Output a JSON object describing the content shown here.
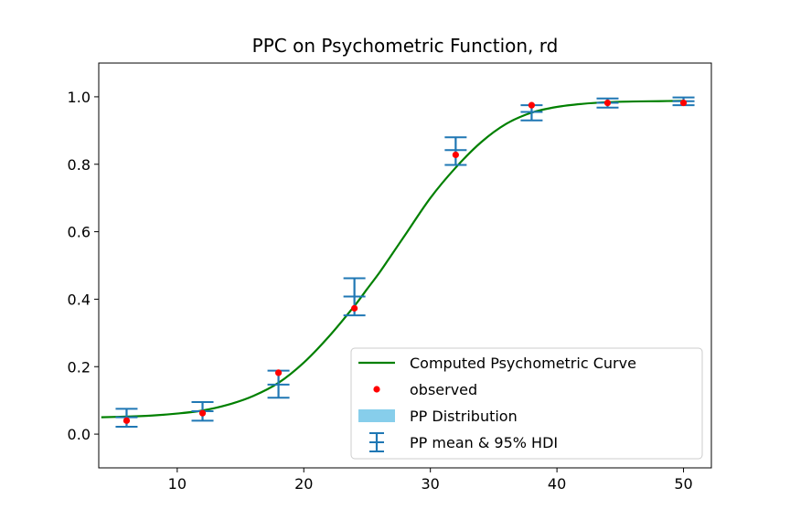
{
  "chart_data": {
    "type": "line",
    "title": "PPC on Psychometric Function, rd",
    "xlabel": "",
    "ylabel": "",
    "xlim": [
      3.8,
      52.2
    ],
    "ylim": [
      -0.1,
      1.1
    ],
    "xticks": [
      10,
      20,
      30,
      40,
      50
    ],
    "yticks": [
      0.0,
      0.2,
      0.4,
      0.6,
      0.8,
      1.0
    ],
    "xtick_labels": [
      "10",
      "20",
      "30",
      "40",
      "50"
    ],
    "ytick_labels": [
      "0.0",
      "0.2",
      "0.4",
      "0.6",
      "0.8",
      "1.0"
    ],
    "grid": false,
    "legend_position": "lower-right",
    "legend": [
      "Computed Psychometric Curve",
      "observed",
      "PP Distribution",
      "PP mean & 95% HDI"
    ],
    "curve": {
      "name": "Computed Psychometric Curve",
      "color": "#008000",
      "x": [
        4,
        6,
        8,
        10,
        12,
        14,
        16,
        18,
        20,
        22,
        24,
        25,
        26,
        27,
        28,
        30,
        32,
        34,
        36,
        38,
        40,
        42,
        44,
        46,
        48,
        50
      ],
      "y": [
        0.05,
        0.052,
        0.055,
        0.061,
        0.07,
        0.087,
        0.113,
        0.152,
        0.212,
        0.29,
        0.38,
        0.43,
        0.48,
        0.535,
        0.59,
        0.7,
        0.79,
        0.865,
        0.92,
        0.953,
        0.97,
        0.979,
        0.984,
        0.986,
        0.987,
        0.988
      ]
    },
    "observed": {
      "name": "observed",
      "color": "#ff0000",
      "x": [
        6,
        12,
        18,
        24,
        32,
        38,
        44,
        50
      ],
      "y": [
        0.04,
        0.062,
        0.182,
        0.373,
        0.828,
        0.975,
        0.982,
        0.982
      ]
    },
    "pp_mean_hdi": {
      "name": "PP mean & 95% HDI",
      "color": "#1f77b4",
      "x": [
        6,
        12,
        18,
        24,
        32,
        38,
        44,
        50
      ],
      "mean": [
        0.05,
        0.068,
        0.147,
        0.408,
        0.842,
        0.955,
        0.982,
        0.987
      ],
      "lower": [
        0.022,
        0.04,
        0.108,
        0.352,
        0.798,
        0.93,
        0.968,
        0.975
      ],
      "upper": [
        0.075,
        0.095,
        0.188,
        0.462,
        0.88,
        0.975,
        0.995,
        0.998
      ]
    },
    "pp_distribution_color": "#87ceeb"
  }
}
